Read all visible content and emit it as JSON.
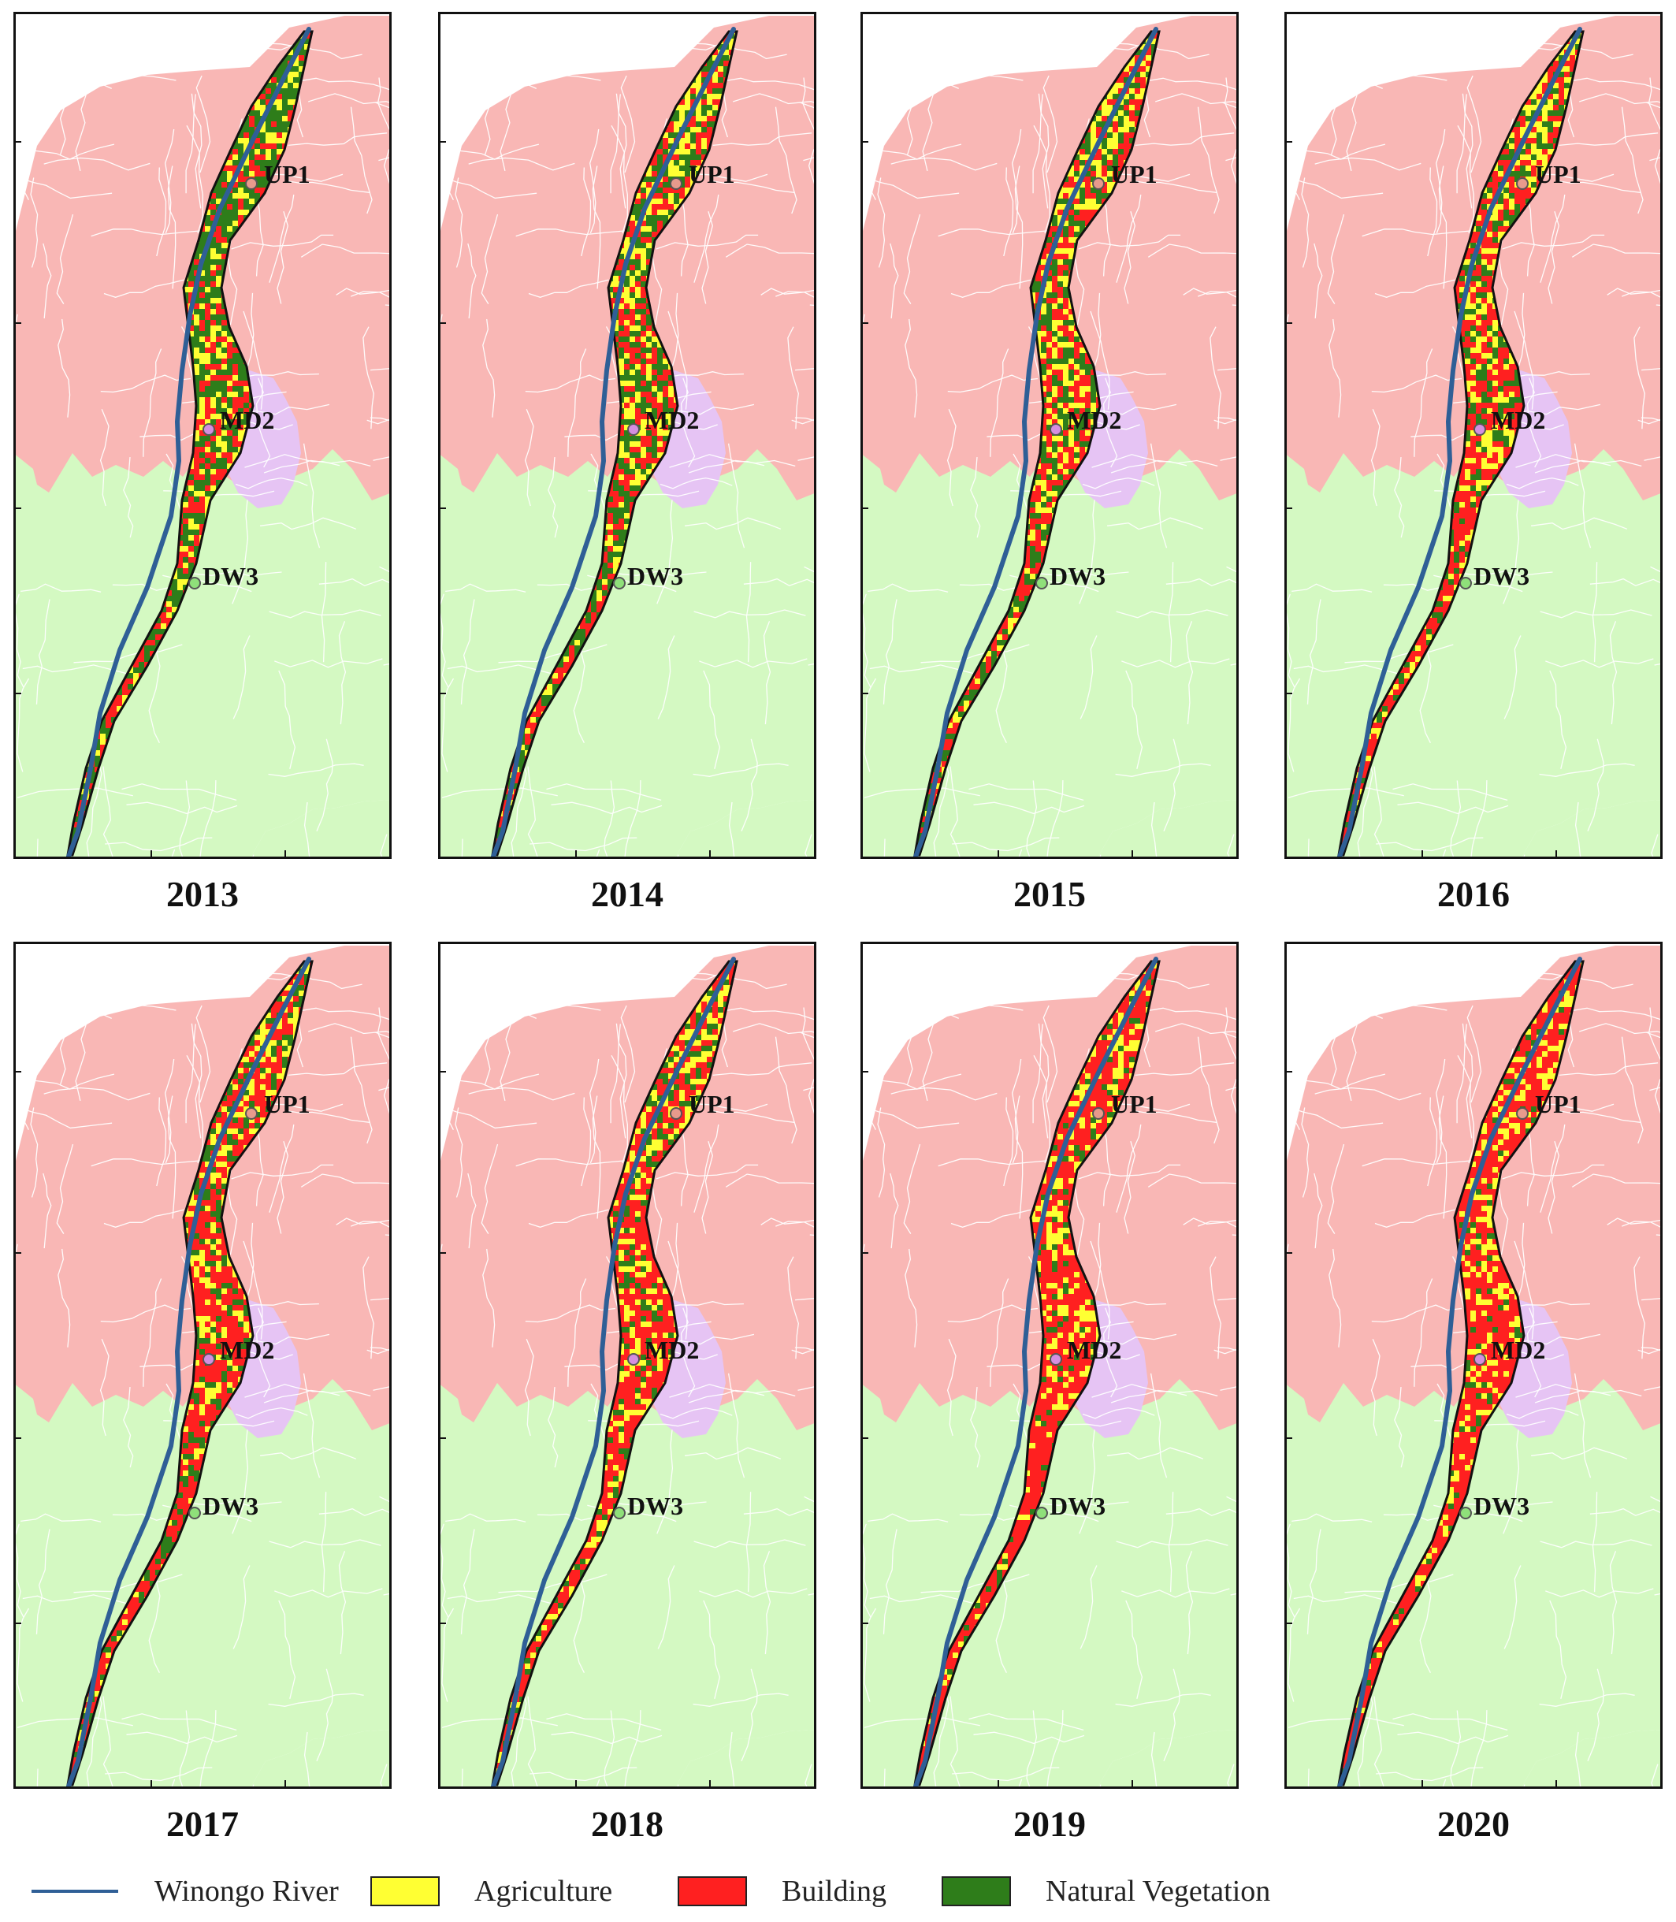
{
  "figure": {
    "panels": [
      {
        "year": "2013",
        "stage": 0
      },
      {
        "year": "2014",
        "stage": 1
      },
      {
        "year": "2015",
        "stage": 2
      },
      {
        "year": "2016",
        "stage": 3
      },
      {
        "year": "2017",
        "stage": 4
      },
      {
        "year": "2018",
        "stage": 5
      },
      {
        "year": "2019",
        "stage": 6
      },
      {
        "year": "2020",
        "stage": 7
      }
    ],
    "sites": [
      {
        "label": "UP1",
        "color": "#e89a8c"
      },
      {
        "label": "MD2",
        "color": "#d58fe0"
      },
      {
        "label": "DW3",
        "color": "#8fe07a"
      }
    ]
  },
  "legend": {
    "items": [
      {
        "label": "Winongo River",
        "kind": "line",
        "color": "#2f5f96"
      },
      {
        "label": "Agriculture",
        "kind": "fill",
        "color": "#ffff33"
      },
      {
        "label": "Building",
        "kind": "fill",
        "color": "#ff2020"
      },
      {
        "label": "Natural Vegetation",
        "kind": "fill",
        "color": "#2e7d1a"
      }
    ]
  },
  "colors": {
    "north_region": "#f9b7b5",
    "south_region": "#d4f9c2",
    "city_region": "#e6c4f4",
    "agriculture": "#ffff33",
    "building": "#ff2020",
    "vegetation": "#2e7d1a",
    "river": "#2f5f96"
  }
}
